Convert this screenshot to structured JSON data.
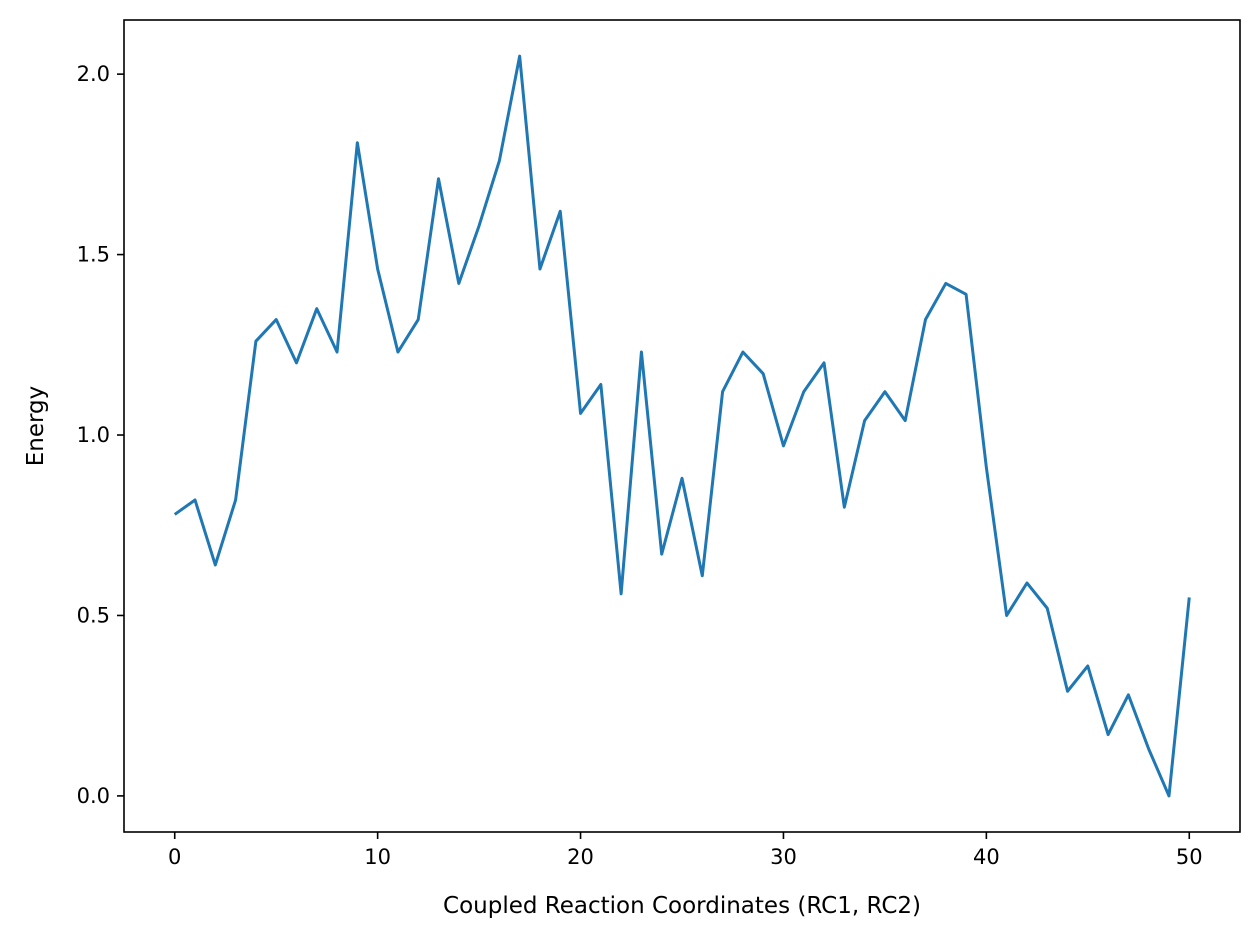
{
  "chart_data": {
    "type": "line",
    "xlabel": "Coupled Reaction Coordinates (RC1, RC2)",
    "ylabel": "Energy",
    "xlim": [
      -2.5,
      52.5
    ],
    "ylim": [
      -0.1,
      2.15
    ],
    "grid": false,
    "x_ticks": [
      0,
      10,
      20,
      30,
      40,
      50
    ],
    "x_tick_labels": [
      "0",
      "10",
      "20",
      "30",
      "40",
      "50"
    ],
    "y_ticks": [
      0.0,
      0.5,
      1.0,
      1.5,
      2.0
    ],
    "y_tick_labels": [
      "0.0",
      "0.5",
      "1.0",
      "1.5",
      "2.0"
    ],
    "series": [
      {
        "color": "#1f77b4",
        "x": [
          0,
          1,
          2,
          3,
          4,
          5,
          6,
          7,
          8,
          9,
          10,
          11,
          12,
          13,
          14,
          15,
          16,
          17,
          18,
          19,
          20,
          21,
          22,
          23,
          24,
          25,
          26,
          27,
          28,
          29,
          30,
          31,
          32,
          33,
          34,
          35,
          36,
          37,
          38,
          39,
          40,
          41,
          42,
          43,
          44,
          45,
          46,
          47,
          48,
          49,
          50
        ],
        "values": [
          0.78,
          0.82,
          0.64,
          0.82,
          1.26,
          1.32,
          1.2,
          1.35,
          1.23,
          1.81,
          1.46,
          1.23,
          1.32,
          1.71,
          1.42,
          1.58,
          1.76,
          2.05,
          1.46,
          1.62,
          1.06,
          1.14,
          0.56,
          1.23,
          0.67,
          0.88,
          0.61,
          1.12,
          1.23,
          1.17,
          0.97,
          1.12,
          1.2,
          0.8,
          1.04,
          1.12,
          1.04,
          1.32,
          1.42,
          1.39,
          0.91,
          0.5,
          0.59,
          0.52,
          0.29,
          0.36,
          0.17,
          0.28,
          0.13,
          0.0,
          0.55
        ]
      }
    ]
  }
}
